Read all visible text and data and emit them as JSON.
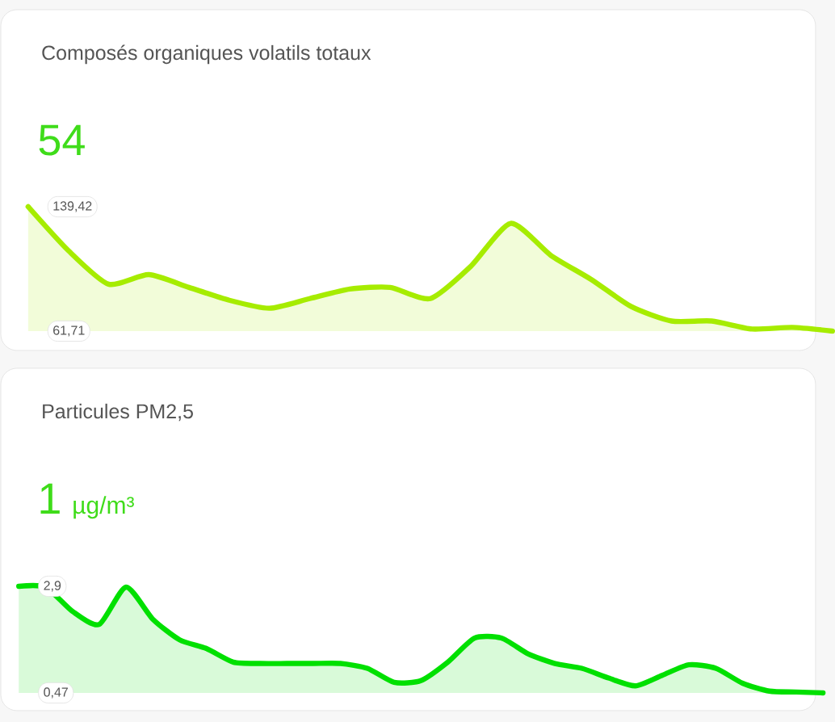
{
  "chart_data": [
    {
      "type": "area",
      "title": "Composés organiques volatils totaux",
      "subtitle": "54",
      "categories": [
        null,
        null,
        null,
        null,
        null,
        null,
        null,
        null,
        null,
        null,
        null,
        null,
        null,
        null,
        null,
        null,
        null,
        null,
        null,
        null,
        null
      ],
      "series": [
        {
          "color": "#a6ec00",
          "values": [
            139.42,
            112,
            91,
            97,
            89,
            81,
            76,
            82,
            88,
            89,
            82,
            102,
            129,
            109,
            94,
            77,
            68,
            68,
            63,
            64,
            61.71
          ]
        }
      ],
      "ylim": [
        61.71,
        139.42
      ],
      "yticks": [
        {
          "value": 61.71,
          "label": "61,71"
        },
        {
          "value": 139.42,
          "label": "139,42"
        }
      ],
      "tick_labels": "y"
    },
    {
      "type": "area",
      "title": "Particules PM2,5",
      "subtitle": "1",
      "annotations": [
        "µg/m³"
      ],
      "categories": [
        null,
        null,
        null,
        null,
        null,
        null,
        null,
        null,
        null,
        null,
        null,
        null,
        null,
        null,
        null,
        null,
        null,
        null,
        null,
        null,
        null,
        null,
        null,
        null,
        null,
        null,
        null,
        null,
        null,
        null,
        null
      ],
      "series": [
        {
          "color": "#00e000",
          "values": [
            2.9,
            2.88,
            2.33,
            2.03,
            2.88,
            2.15,
            1.68,
            1.48,
            1.17,
            1.14,
            1.14,
            1.14,
            1.14,
            1.03,
            0.71,
            0.75,
            1.17,
            1.72,
            1.72,
            1.36,
            1.14,
            1.03,
            0.81,
            0.63,
            0.87,
            1.11,
            1.03,
            0.69,
            0.51,
            0.49,
            0.47
          ]
        }
      ],
      "ylim": [
        0.47,
        2.9
      ],
      "yticks": [
        {
          "value": 0.47,
          "label": "0,47"
        },
        {
          "value": 2.9,
          "label": "2,9"
        }
      ],
      "tick_labels": "y"
    }
  ]
}
